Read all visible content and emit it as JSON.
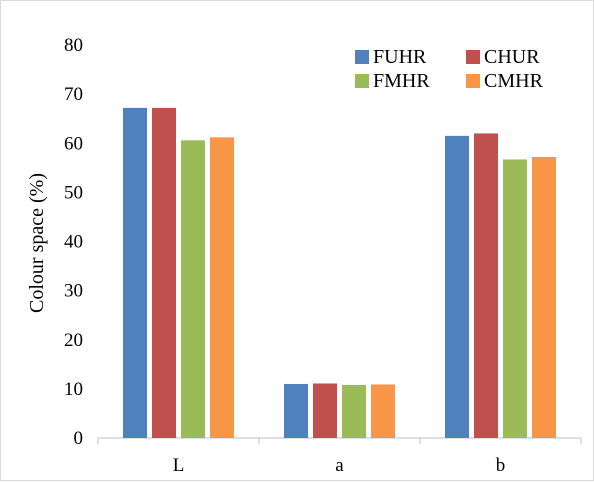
{
  "chart_data": {
    "type": "bar",
    "title": "",
    "xlabel": "",
    "ylabel": "Colour space (%)",
    "categories": [
      "L",
      "a",
      "b"
    ],
    "ylim": [
      0,
      80
    ],
    "yticks": [
      0,
      10,
      20,
      30,
      40,
      50,
      60,
      70,
      80
    ],
    "grid": false,
    "legend_position": "top-right",
    "series": [
      {
        "name": "FUHR",
        "color": "#4F81BD",
        "values": [
          67.2,
          11.0,
          61.5
        ]
      },
      {
        "name": "CHUR",
        "color": "#C0504D",
        "values": [
          67.2,
          11.1,
          62.0
        ]
      },
      {
        "name": "FMHR",
        "color": "#9BBB59",
        "values": [
          60.6,
          10.8,
          56.7
        ]
      },
      {
        "name": "CMHR",
        "color": "#F79646",
        "values": [
          61.2,
          10.9,
          57.2
        ]
      }
    ]
  }
}
